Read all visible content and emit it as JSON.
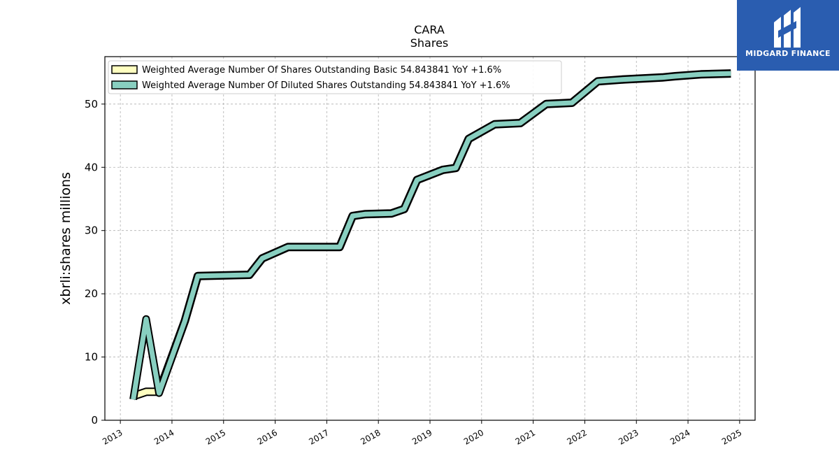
{
  "chart_data": {
    "type": "line",
    "title": "CARA",
    "subtitle": "Shares",
    "ylabel": "xbrli:shares millions",
    "ylim": [
      0,
      57.5
    ],
    "xlim": [
      2012.7,
      2025.3
    ],
    "yticks": [
      0,
      10,
      20,
      30,
      40,
      50
    ],
    "xticks": [
      "2013",
      "2014",
      "2015",
      "2016",
      "2017",
      "2018",
      "2019",
      "2020",
      "2021",
      "2022",
      "2023",
      "2024",
      "2025"
    ],
    "grid": true,
    "legend_position": "top-left",
    "series": [
      {
        "name": "Weighted Average Number Of Shares Outstanding Basic",
        "legend_label": "Weighted Average Number Of Shares Outstanding Basic  54.843841 YoY +1.6%",
        "color": "#ffffc0",
        "x": [
          2013.25,
          2013.5,
          2013.75,
          2014.25,
          2014.5,
          2015.0,
          2015.5,
          2015.75,
          2016.25,
          2016.5,
          2017.0,
          2017.25,
          2017.5,
          2017.75,
          2018.25,
          2018.5,
          2018.75,
          2019.25,
          2019.5,
          2019.75,
          2020.25,
          2020.75,
          2021.25,
          2021.75,
          2022.25,
          2022.75,
          2023.5,
          2023.75,
          2024.25,
          2024.83
        ],
        "y": [
          3.8,
          4.5,
          4.5,
          15.7,
          22.8,
          22.9,
          23.0,
          25.6,
          27.4,
          27.4,
          27.4,
          27.4,
          32.3,
          32.6,
          32.7,
          33.4,
          38.0,
          39.6,
          39.9,
          44.5,
          46.8,
          47.0,
          50.0,
          50.2,
          53.6,
          53.9,
          54.2,
          54.4,
          54.7,
          54.84
        ]
      },
      {
        "name": "Weighted Average Number Of Diluted Shares Outstanding",
        "legend_label": "Weighted Average Number Of Diluted Shares Outstanding  54.843841 YoY +1.6%",
        "color": "#88cfc0",
        "x": [
          2013.25,
          2013.5,
          2013.75,
          2014.25,
          2014.5,
          2015.0,
          2015.5,
          2015.75,
          2016.25,
          2016.5,
          2017.0,
          2017.25,
          2017.5,
          2017.75,
          2018.25,
          2018.5,
          2018.75,
          2019.25,
          2019.5,
          2019.75,
          2020.25,
          2020.75,
          2021.25,
          2021.75,
          2022.25,
          2022.75,
          2023.5,
          2023.75,
          2024.25,
          2024.83
        ],
        "y": [
          3.3,
          16.0,
          4.3,
          15.7,
          22.8,
          22.9,
          23.0,
          25.6,
          27.4,
          27.4,
          27.4,
          27.4,
          32.3,
          32.6,
          32.7,
          33.4,
          38.0,
          39.6,
          39.9,
          44.5,
          46.8,
          47.0,
          50.0,
          50.2,
          53.6,
          53.9,
          54.2,
          54.4,
          54.7,
          54.84
        ]
      }
    ]
  },
  "logo": {
    "text": "MIDGARD FINANCE",
    "background": "#2a5db0"
  }
}
